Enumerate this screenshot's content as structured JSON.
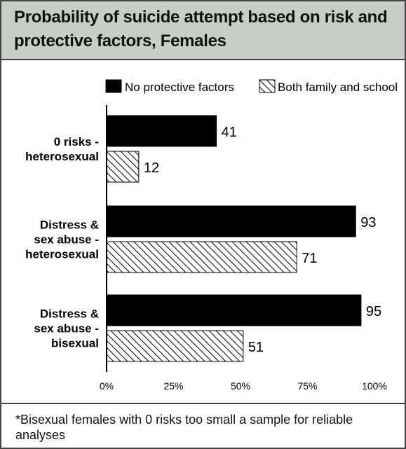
{
  "chart_data": {
    "type": "bar",
    "orientation": "horizontal",
    "title": "Probability of suicide attempt based on risk and protective factors, Females",
    "categories": [
      [
        "0 risks -",
        "heterosexual"
      ],
      [
        "Distress &",
        "sex abuse -",
        "heterosexual"
      ],
      [
        "Distress &",
        "sex abuse -",
        "bisexual"
      ]
    ],
    "series": [
      {
        "name": "No protective factors",
        "values": [
          41,
          93,
          95
        ],
        "fill": "solid",
        "color": "#000000"
      },
      {
        "name": "Both family and school",
        "values": [
          12,
          71,
          51
        ],
        "fill": "hatched",
        "color": "#000000"
      }
    ],
    "xlim": [
      0,
      100
    ],
    "xticks": [
      "0%",
      "25%",
      "50%",
      "75%",
      "100%"
    ],
    "legend_position": "top",
    "grid": false,
    "footnote": "*Bisexual females with 0 risks too small a sample for reliable analyses"
  }
}
